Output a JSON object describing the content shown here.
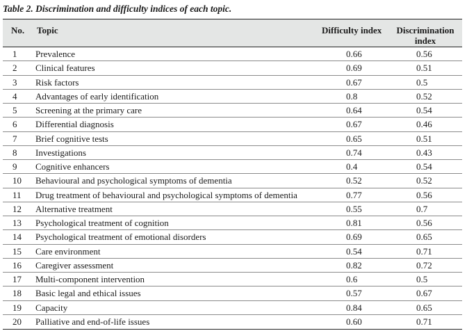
{
  "caption": "Table 2. Discrimination and difficulty indices of each topic.",
  "headers": {
    "no": "No.",
    "topic": "Topic",
    "difficulty": "Difficulty index",
    "discrimination": "Discrimination index"
  },
  "rows": [
    {
      "no": "1",
      "topic": "Prevalence",
      "difficulty": "0.66",
      "discrimination": "0.56"
    },
    {
      "no": "2",
      "topic": "Clinical features",
      "difficulty": "0.69",
      "discrimination": "0.51"
    },
    {
      "no": "3",
      "topic": "Risk factors",
      "difficulty": "0.67",
      "discrimination": "0.5"
    },
    {
      "no": "4",
      "topic": "Advantages of early identification",
      "difficulty": "0.8",
      "discrimination": "0.52"
    },
    {
      "no": "5",
      "topic": "Screening at the primary care",
      "difficulty": "0.64",
      "discrimination": "0.54"
    },
    {
      "no": "6",
      "topic": "Differential diagnosis",
      "difficulty": "0.67",
      "discrimination": "0.46"
    },
    {
      "no": "7",
      "topic": "Brief cognitive tests",
      "difficulty": "0.65",
      "discrimination": "0.51"
    },
    {
      "no": "8",
      "topic": "Investigations",
      "difficulty": "0.74",
      "discrimination": "0.43"
    },
    {
      "no": "9",
      "topic": "Cognitive enhancers",
      "difficulty": "0.4",
      "discrimination": "0.54"
    },
    {
      "no": "10",
      "topic": "Behavioural and psychological symptoms of dementia",
      "difficulty": "0.52",
      "discrimination": "0.52"
    },
    {
      "no": "11",
      "topic": "Drug treatment of behavioural and psychological symptoms of dementia",
      "difficulty": "0.77",
      "discrimination": "0.56"
    },
    {
      "no": "12",
      "topic": "Alternative treatment",
      "difficulty": "0.55",
      "discrimination": "0.7"
    },
    {
      "no": "13",
      "topic": "Psychological treatment of cognition",
      "difficulty": "0.81",
      "discrimination": "0.56"
    },
    {
      "no": "14",
      "topic": "Psychological treatment of emotional disorders",
      "difficulty": "0.69",
      "discrimination": "0.65"
    },
    {
      "no": "15",
      "topic": "Care environment",
      "difficulty": "0.54",
      "discrimination": "0.71"
    },
    {
      "no": "16",
      "topic": "Caregiver assessment",
      "difficulty": "0.82",
      "discrimination": "0.72"
    },
    {
      "no": "17",
      "topic": "Multi-component intervention",
      "difficulty": "0.6",
      "discrimination": "0.5"
    },
    {
      "no": "18",
      "topic": "Basic legal and ethical issues",
      "difficulty": "0.57",
      "discrimination": "0.67"
    },
    {
      "no": "19",
      "topic": "Capacity",
      "difficulty": "0.84",
      "discrimination": "0.65"
    },
    {
      "no": "20",
      "topic": "Palliative and end-of-life issues",
      "difficulty": "0.60",
      "discrimination": "0.71"
    }
  ]
}
